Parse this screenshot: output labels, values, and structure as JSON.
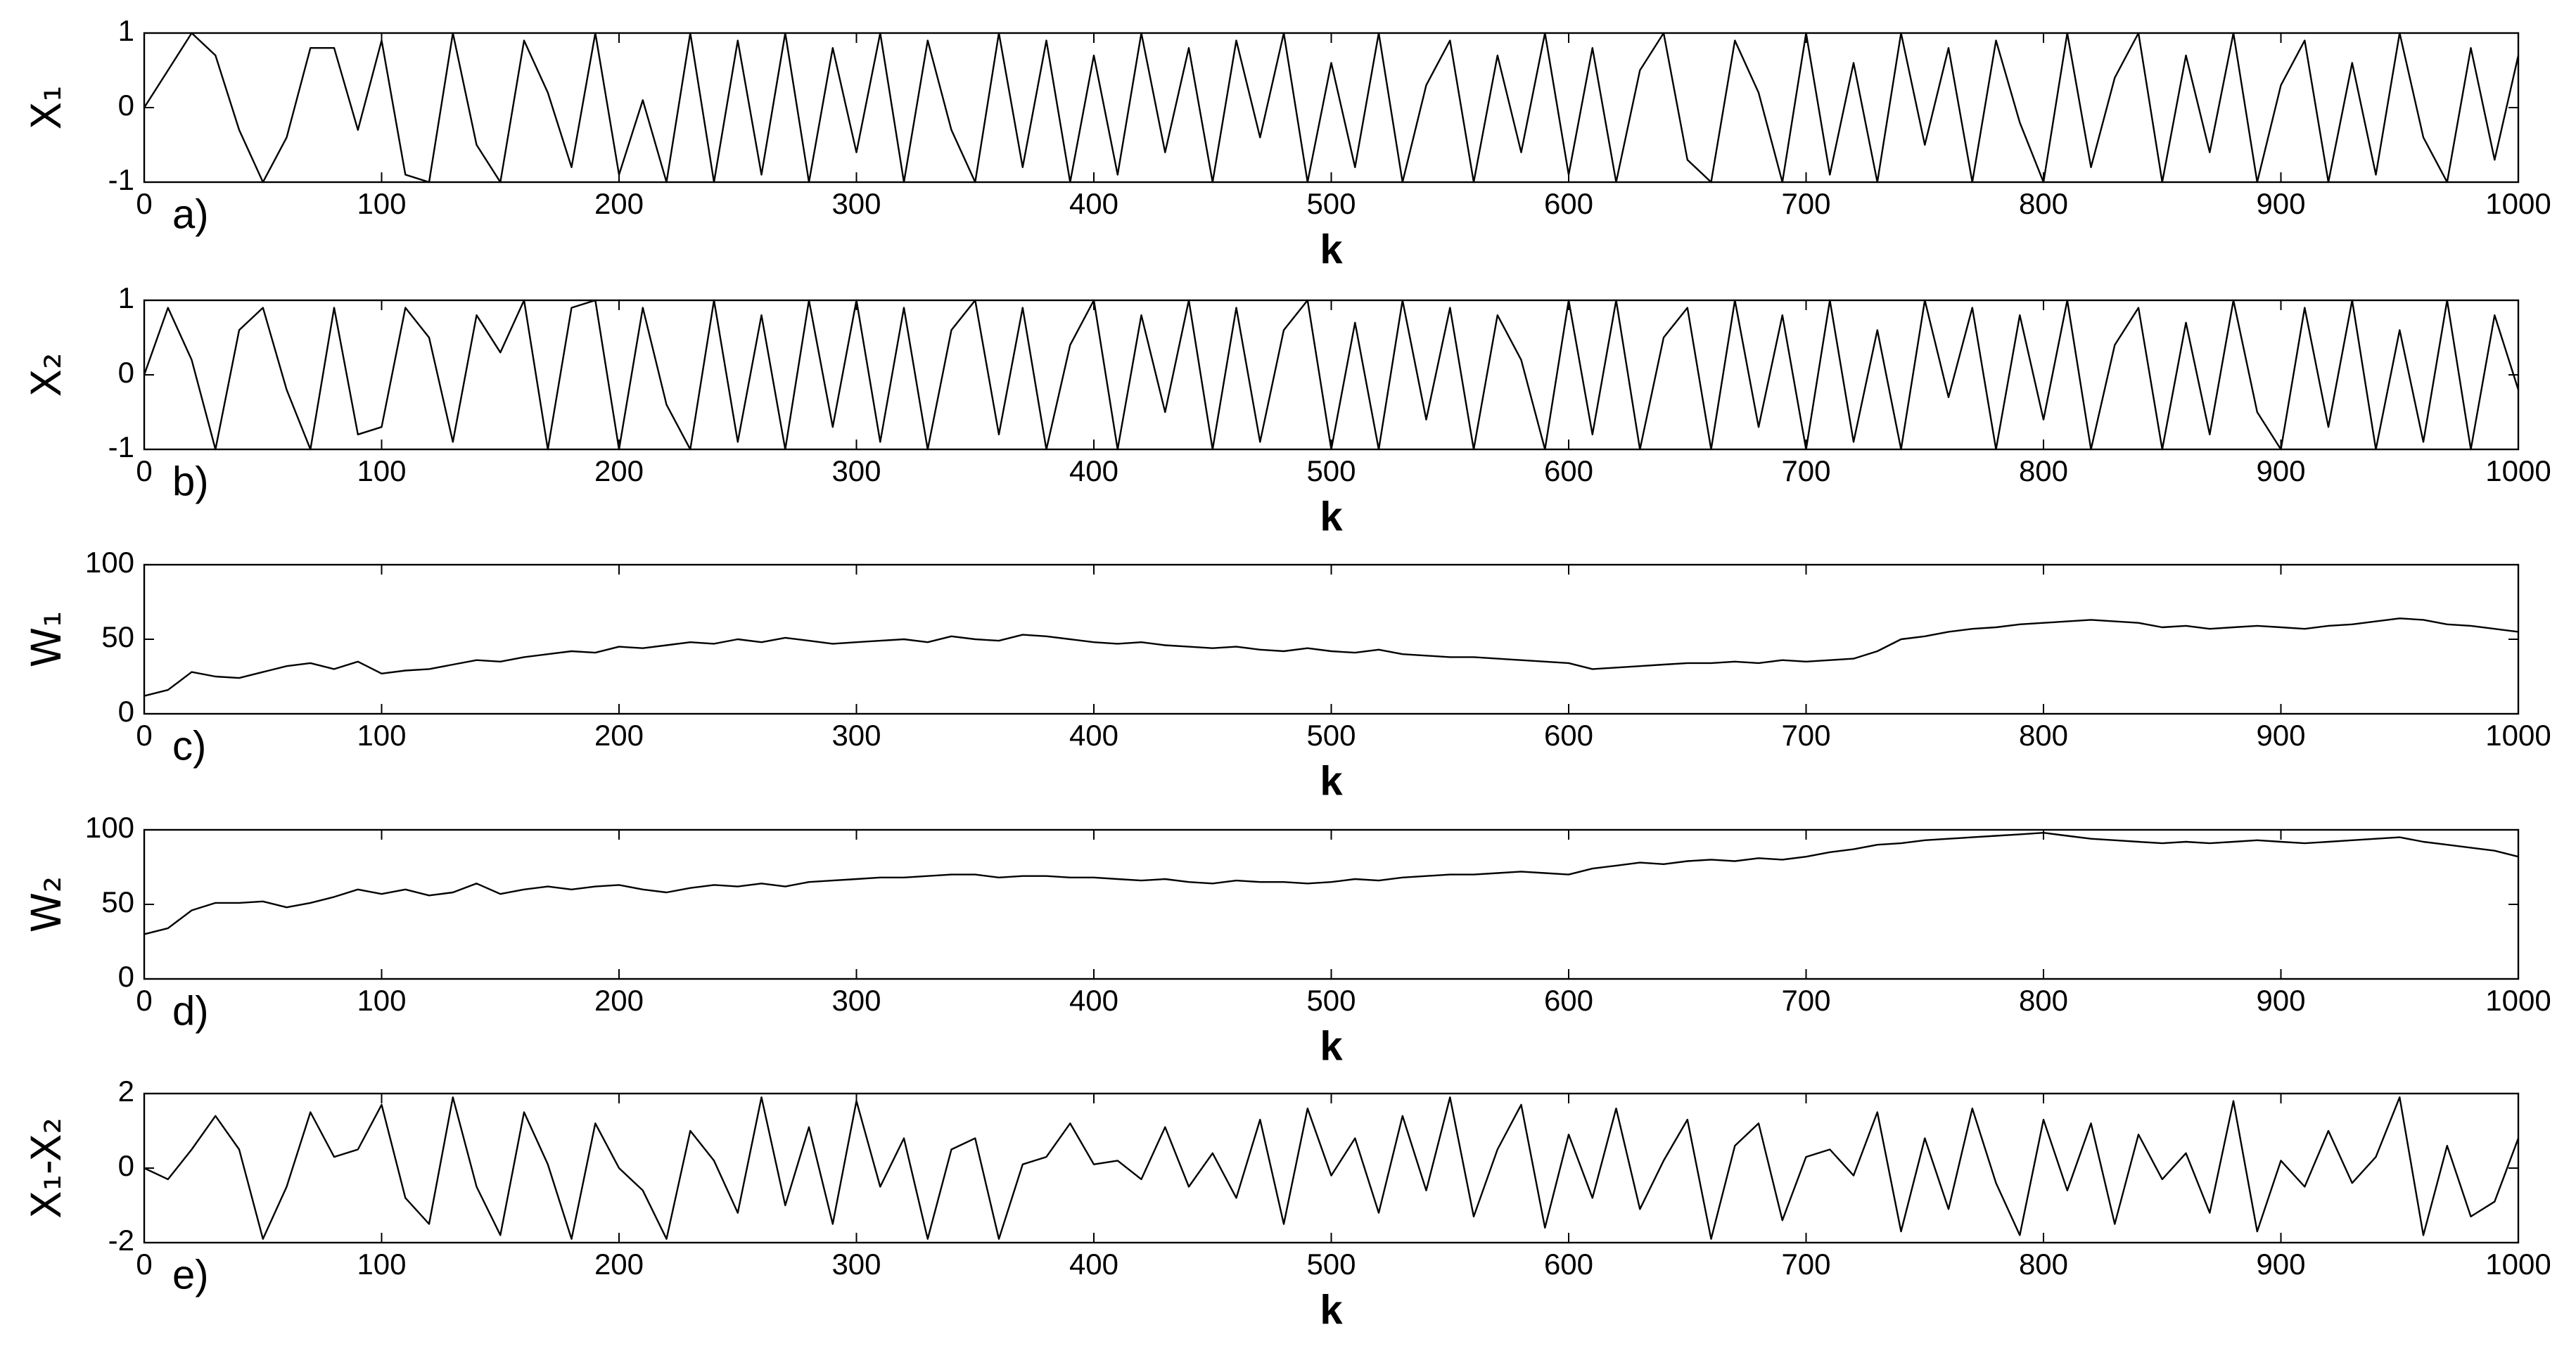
{
  "chart_data": [
    {
      "type": "line",
      "y_label": "X₁",
      "x_label": "k",
      "panel_label": "a)",
      "color": "#000000",
      "x": [
        0,
        10,
        20,
        30,
        40,
        50,
        60,
        70,
        80,
        90,
        100,
        110,
        120,
        130,
        140,
        150,
        160,
        170,
        180,
        190,
        200,
        210,
        220,
        230,
        240,
        250,
        260,
        270,
        280,
        290,
        300,
        310,
        320,
        330,
        340,
        350,
        360,
        370,
        380,
        390,
        400,
        410,
        420,
        430,
        440,
        450,
        460,
        470,
        480,
        490,
        500,
        510,
        520,
        530,
        540,
        550,
        560,
        570,
        580,
        590,
        600,
        610,
        620,
        630,
        640,
        650,
        660,
        670,
        680,
        690,
        700,
        710,
        720,
        730,
        740,
        750,
        760,
        770,
        780,
        790,
        800,
        810,
        820,
        830,
        840,
        850,
        860,
        870,
        880,
        890,
        900,
        910,
        920,
        930,
        940,
        950,
        960,
        970,
        980,
        990,
        1000
      ],
      "values": [
        0,
        0.5,
        1,
        0.7,
        -0.3,
        -1,
        -0.4,
        0.8,
        0.8,
        -0.3,
        0.9,
        -0.9,
        -1,
        1,
        -0.5,
        -1,
        0.9,
        0.2,
        -0.8,
        1,
        -0.9,
        0.1,
        -1,
        1,
        -1,
        0.9,
        -0.9,
        1,
        -1,
        0.8,
        -0.6,
        1,
        -1,
        0.9,
        -0.3,
        -1,
        1,
        -0.8,
        0.9,
        -1,
        0.7,
        -0.9,
        1,
        -0.6,
        0.8,
        -1,
        0.9,
        -0.4,
        1,
        -1,
        0.6,
        -0.8,
        1,
        -1,
        0.3,
        0.9,
        -1,
        0.7,
        -0.6,
        1,
        -0.9,
        0.8,
        -1,
        0.5,
        1,
        -0.7,
        -1,
        0.9,
        0.2,
        -1,
        1,
        -0.9,
        0.6,
        -1,
        1,
        -0.5,
        0.8,
        -1,
        0.9,
        -0.2,
        -1,
        1,
        -0.8,
        0.4,
        1,
        -1,
        0.7,
        -0.6,
        1,
        -1,
        0.3,
        0.9,
        -1,
        0.6,
        -0.9,
        1,
        -0.4,
        -1,
        0.8,
        -0.7,
        0.7
      ],
      "xlim": [
        0,
        1000
      ],
      "xticks": [
        0,
        100,
        200,
        300,
        400,
        500,
        600,
        700,
        800,
        900,
        1000
      ],
      "ylim": [
        -1,
        1
      ],
      "yticks": [
        -1,
        0,
        1
      ]
    },
    {
      "type": "line",
      "y_label": "X₂",
      "x_label": "k",
      "panel_label": "b)",
      "color": "#000000",
      "x": [
        0,
        10,
        20,
        30,
        40,
        50,
        60,
        70,
        80,
        90,
        100,
        110,
        120,
        130,
        140,
        150,
        160,
        170,
        180,
        190,
        200,
        210,
        220,
        230,
        240,
        250,
        260,
        270,
        280,
        290,
        300,
        310,
        320,
        330,
        340,
        350,
        360,
        370,
        380,
        390,
        400,
        410,
        420,
        430,
        440,
        450,
        460,
        470,
        480,
        490,
        500,
        510,
        520,
        530,
        540,
        550,
        560,
        570,
        580,
        590,
        600,
        610,
        620,
        630,
        640,
        650,
        660,
        670,
        680,
        690,
        700,
        710,
        720,
        730,
        740,
        750,
        760,
        770,
        780,
        790,
        800,
        810,
        820,
        830,
        840,
        850,
        860,
        870,
        880,
        890,
        900,
        910,
        920,
        930,
        940,
        950,
        960,
        970,
        980,
        990,
        1000
      ],
      "values": [
        0,
        0.9,
        0.2,
        -1,
        0.6,
        0.9,
        -0.2,
        -1,
        0.9,
        -0.8,
        -0.7,
        0.9,
        0.5,
        -0.9,
        0.8,
        0.3,
        1,
        -1,
        0.9,
        1,
        -1,
        0.9,
        -0.4,
        -1,
        1,
        -0.9,
        0.8,
        -1,
        1,
        -0.7,
        1,
        -0.9,
        0.9,
        -1,
        0.6,
        1,
        -0.8,
        0.9,
        -1,
        0.4,
        1,
        -1,
        0.8,
        -0.5,
        1,
        -1,
        0.9,
        -0.9,
        0.6,
        1,
        -1,
        0.7,
        -1,
        1,
        -0.6,
        0.9,
        -1,
        0.8,
        0.2,
        -1,
        1,
        -0.8,
        1,
        -1,
        0.5,
        0.9,
        -1,
        1,
        -0.7,
        0.8,
        -1,
        1,
        -0.9,
        0.6,
        -1,
        1,
        -0.3,
        0.9,
        -1,
        0.8,
        -0.6,
        1,
        -1,
        0.4,
        0.9,
        -1,
        0.7,
        -0.8,
        1,
        -0.5,
        -1,
        0.9,
        -0.7,
        1,
        -1,
        0.6,
        -0.9,
        1,
        -1,
        0.8,
        -0.2
      ],
      "xlim": [
        0,
        1000
      ],
      "xticks": [
        0,
        100,
        200,
        300,
        400,
        500,
        600,
        700,
        800,
        900,
        1000
      ],
      "ylim": [
        -1,
        1
      ],
      "yticks": [
        -1,
        0,
        1
      ]
    },
    {
      "type": "line",
      "y_label": "W₁",
      "x_label": "k",
      "panel_label": "c)",
      "color": "#000000",
      "x": [
        0,
        10,
        20,
        30,
        40,
        50,
        60,
        70,
        80,
        90,
        100,
        110,
        120,
        130,
        140,
        150,
        160,
        170,
        180,
        190,
        200,
        210,
        220,
        230,
        240,
        250,
        260,
        270,
        280,
        290,
        300,
        310,
        320,
        330,
        340,
        350,
        360,
        370,
        380,
        390,
        400,
        410,
        420,
        430,
        440,
        450,
        460,
        470,
        480,
        490,
        500,
        510,
        520,
        530,
        540,
        550,
        560,
        570,
        580,
        590,
        600,
        610,
        620,
        630,
        640,
        650,
        660,
        670,
        680,
        690,
        700,
        710,
        720,
        730,
        740,
        750,
        760,
        770,
        780,
        790,
        800,
        810,
        820,
        830,
        840,
        850,
        860,
        870,
        880,
        890,
        900,
        910,
        920,
        930,
        940,
        950,
        960,
        970,
        980,
        990,
        1000
      ],
      "values": [
        12,
        16,
        28,
        25,
        24,
        28,
        32,
        34,
        30,
        35,
        27,
        29,
        30,
        33,
        36,
        35,
        38,
        40,
        42,
        41,
        45,
        44,
        46,
        48,
        47,
        50,
        48,
        51,
        49,
        47,
        48,
        49,
        50,
        48,
        52,
        50,
        49,
        53,
        52,
        50,
        48,
        47,
        48,
        46,
        45,
        44,
        45,
        43,
        42,
        44,
        42,
        41,
        43,
        40,
        39,
        38,
        38,
        37,
        36,
        35,
        34,
        30,
        31,
        32,
        33,
        34,
        34,
        35,
        34,
        36,
        35,
        36,
        37,
        42,
        50,
        52,
        55,
        57,
        58,
        60,
        61,
        62,
        63,
        62,
        61,
        58,
        59,
        57,
        58,
        59,
        58,
        57,
        59,
        60,
        62,
        64,
        63,
        60,
        59,
        57,
        55
      ],
      "xlim": [
        0,
        1000
      ],
      "xticks": [
        0,
        100,
        200,
        300,
        400,
        500,
        600,
        700,
        800,
        900,
        1000
      ],
      "ylim": [
        0,
        100
      ],
      "yticks": [
        0,
        50,
        100
      ]
    },
    {
      "type": "line",
      "y_label": "W₂",
      "x_label": "k",
      "panel_label": "d)",
      "color": "#000000",
      "x": [
        0,
        10,
        20,
        30,
        40,
        50,
        60,
        70,
        80,
        90,
        100,
        110,
        120,
        130,
        140,
        150,
        160,
        170,
        180,
        190,
        200,
        210,
        220,
        230,
        240,
        250,
        260,
        270,
        280,
        290,
        300,
        310,
        320,
        330,
        340,
        350,
        360,
        370,
        380,
        390,
        400,
        410,
        420,
        430,
        440,
        450,
        460,
        470,
        480,
        490,
        500,
        510,
        520,
        530,
        540,
        550,
        560,
        570,
        580,
        590,
        600,
        610,
        620,
        630,
        640,
        650,
        660,
        670,
        680,
        690,
        700,
        710,
        720,
        730,
        740,
        750,
        760,
        770,
        780,
        790,
        800,
        810,
        820,
        830,
        840,
        850,
        860,
        870,
        880,
        890,
        900,
        910,
        920,
        930,
        940,
        950,
        960,
        970,
        980,
        990,
        1000
      ],
      "values": [
        30,
        34,
        46,
        51,
        51,
        52,
        48,
        51,
        55,
        60,
        57,
        60,
        56,
        58,
        64,
        57,
        60,
        62,
        60,
        62,
        63,
        60,
        58,
        61,
        63,
        62,
        64,
        62,
        65,
        66,
        67,
        68,
        68,
        69,
        70,
        70,
        68,
        69,
        69,
        68,
        68,
        67,
        66,
        67,
        65,
        64,
        66,
        65,
        65,
        64,
        65,
        67,
        66,
        68,
        69,
        70,
        70,
        71,
        72,
        71,
        70,
        74,
        76,
        78,
        77,
        79,
        80,
        79,
        81,
        80,
        82,
        85,
        87,
        90,
        91,
        93,
        94,
        95,
        96,
        97,
        98,
        96,
        94,
        93,
        92,
        91,
        92,
        91,
        92,
        93,
        92,
        91,
        92,
        93,
        94,
        95,
        92,
        90,
        88,
        86,
        82
      ],
      "xlim": [
        0,
        1000
      ],
      "xticks": [
        0,
        100,
        200,
        300,
        400,
        500,
        600,
        700,
        800,
        900,
        1000
      ],
      "ylim": [
        0,
        100
      ],
      "yticks": [
        0,
        50,
        100
      ]
    },
    {
      "type": "line",
      "y_label": "X₁-X₂",
      "x_label": "k",
      "panel_label": "e)",
      "color": "#000000",
      "x": [
        0,
        10,
        20,
        30,
        40,
        50,
        60,
        70,
        80,
        90,
        100,
        110,
        120,
        130,
        140,
        150,
        160,
        170,
        180,
        190,
        200,
        210,
        220,
        230,
        240,
        250,
        260,
        270,
        280,
        290,
        300,
        310,
        320,
        330,
        340,
        350,
        360,
        370,
        380,
        390,
        400,
        410,
        420,
        430,
        440,
        450,
        460,
        470,
        480,
        490,
        500,
        510,
        520,
        530,
        540,
        550,
        560,
        570,
        580,
        590,
        600,
        610,
        620,
        630,
        640,
        650,
        660,
        670,
        680,
        690,
        700,
        710,
        720,
        730,
        740,
        750,
        760,
        770,
        780,
        790,
        800,
        810,
        820,
        830,
        840,
        850,
        860,
        870,
        880,
        890,
        900,
        910,
        920,
        930,
        940,
        950,
        960,
        970,
        980,
        990,
        1000
      ],
      "values": [
        0,
        -0.3,
        0.5,
        1.4,
        0.5,
        -1.9,
        -0.5,
        1.5,
        0.3,
        0.5,
        1.7,
        -0.8,
        -1.5,
        1.9,
        -0.5,
        -1.8,
        1.5,
        0.1,
        -1.9,
        1.2,
        0,
        -0.6,
        -1.9,
        1,
        0.2,
        -1.2,
        1.9,
        -1,
        1.1,
        -1.5,
        1.8,
        -0.5,
        0.8,
        -1.9,
        0.5,
        0.8,
        -1.9,
        0.1,
        0.3,
        1.2,
        0.1,
        0.2,
        -0.3,
        1.1,
        -0.5,
        0.4,
        -0.8,
        1.3,
        -1.5,
        1.6,
        -0.2,
        0.8,
        -1.2,
        1.4,
        -0.6,
        1.9,
        -1.3,
        0.5,
        1.7,
        -1.6,
        0.9,
        -0.8,
        1.6,
        -1.1,
        0.2,
        1.3,
        -1.9,
        0.6,
        1.2,
        -1.4,
        0.3,
        0.5,
        -0.2,
        1.5,
        -1.7,
        0.8,
        -1.1,
        1.6,
        -0.4,
        -1.8,
        1.3,
        -0.6,
        1.2,
        -1.5,
        0.9,
        -0.3,
        0.4,
        -1.2,
        1.8,
        -1.7,
        0.2,
        -0.5,
        1,
        -0.4,
        0.3,
        1.9,
        -1.8,
        0.6,
        -1.3,
        -0.9,
        0.8
      ],
      "xlim": [
        0,
        1000
      ],
      "xticks": [
        0,
        100,
        200,
        300,
        400,
        500,
        600,
        700,
        800,
        900,
        1000
      ],
      "ylim": [
        -2,
        2
      ],
      "yticks": [
        -2,
        0,
        2
      ]
    }
  ]
}
